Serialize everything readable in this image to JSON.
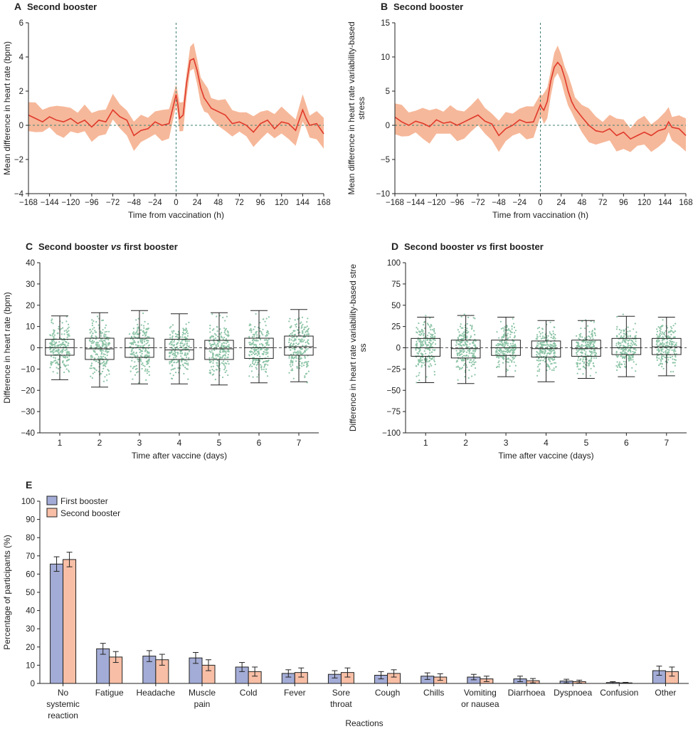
{
  "colors": {
    "ink": "#222222",
    "red_line": "#e0392b",
    "red_band": "#f6b89a",
    "dots": "#8cc4a6",
    "blue_bar": "#a3acd6",
    "orange_bar": "#f8bfa6",
    "ref_line": "#3f7f72"
  },
  "chart_data": [
    {
      "id": "A",
      "panel_letter": "A",
      "title": "Second booster",
      "type": "line",
      "xlabel": "Time from vaccination (h)",
      "ylabel": "Mean difference in heart rate (bpm)",
      "xlim": [
        -168,
        168
      ],
      "ylim": [
        -4,
        6
      ],
      "x_ticks": [
        "−168",
        "−144",
        "−120",
        "−96",
        "−72",
        "−48",
        "−24",
        "0",
        "24",
        "48",
        "72",
        "96",
        "120",
        "144",
        "168"
      ],
      "y_ticks": [
        "−4",
        "−2",
        "0",
        "2",
        "4",
        "6"
      ],
      "x_values": [
        -168,
        -160,
        -152,
        -144,
        -136,
        -128,
        -120,
        -112,
        -104,
        -96,
        -88,
        -80,
        -72,
        -64,
        -56,
        -48,
        -40,
        -32,
        -24,
        -16,
        -8,
        0,
        2,
        4,
        8,
        12,
        16,
        20,
        24,
        28,
        32,
        36,
        40,
        48,
        56,
        64,
        72,
        80,
        88,
        96,
        104,
        112,
        120,
        128,
        136,
        144,
        148,
        152,
        160,
        168
      ],
      "mean": [
        0.6,
        0.4,
        0.2,
        0.5,
        0.3,
        0.2,
        0.4,
        0.1,
        0.3,
        -0.1,
        0.3,
        0.2,
        0.9,
        0.5,
        0.3,
        -0.6,
        -0.3,
        -0.2,
        0.2,
        0.0,
        0.1,
        1.8,
        1.2,
        0.4,
        0.6,
        2.5,
        3.8,
        3.9,
        3.2,
        2.2,
        1.6,
        1.3,
        1.0,
        0.8,
        0.6,
        0.1,
        0.2,
        0.0,
        -0.4,
        0.1,
        0.3,
        -0.2,
        0.2,
        0.1,
        -0.3,
        0.9,
        0.4,
        0.0,
        0.1,
        -0.5
      ],
      "band_half_width": 0.75
    },
    {
      "id": "B",
      "panel_letter": "B",
      "title": "Second booster",
      "type": "line",
      "xlabel": "Time from vaccination (h)",
      "ylabel": "Mean difference in heart rate variability-based stress",
      "xlim": [
        -168,
        168
      ],
      "ylim": [
        -10,
        15
      ],
      "x_ticks": [
        "−168",
        "−144",
        "−120",
        "−96",
        "−72",
        "−48",
        "−24",
        "0",
        "24",
        "48",
        "72",
        "96",
        "120",
        "144",
        "168"
      ],
      "y_ticks": [
        "−10",
        "−5",
        "0",
        "5",
        "10",
        "15"
      ],
      "x_values": [
        -168,
        -160,
        -152,
        -144,
        -136,
        -128,
        -120,
        -112,
        -104,
        -96,
        -88,
        -80,
        -72,
        -64,
        -56,
        -48,
        -40,
        -32,
        -24,
        -16,
        -8,
        0,
        2,
        4,
        8,
        12,
        16,
        20,
        24,
        28,
        32,
        36,
        40,
        48,
        56,
        64,
        72,
        80,
        88,
        96,
        104,
        112,
        120,
        128,
        136,
        144,
        148,
        152,
        160,
        168
      ],
      "mean": [
        1.2,
        0.5,
        0.0,
        0.6,
        0.3,
        -0.2,
        0.8,
        0.3,
        0.5,
        0.0,
        0.5,
        1.0,
        1.5,
        0.6,
        0.2,
        -1.5,
        -0.5,
        0.0,
        0.8,
        0.4,
        0.5,
        3.0,
        2.5,
        2.2,
        3.5,
        6.5,
        8.5,
        9.2,
        8.6,
        7.0,
        5.0,
        3.5,
        2.5,
        1.2,
        0.0,
        -0.8,
        -1.0,
        -0.5,
        -1.5,
        -1.0,
        -2.0,
        -1.5,
        -1.0,
        -1.5,
        -0.8,
        -0.5,
        0.5,
        -0.3,
        -0.5,
        -1.5
      ],
      "band_half_width": 2.0
    },
    {
      "id": "C",
      "panel_letter": "C",
      "title_main": "Second booster ",
      "title_vs": "vs",
      "title_rest": " first booster",
      "type": "box",
      "xlabel": "Time after vaccine (days)",
      "ylabel": "Difference in heart rate (bpm)",
      "ylim": [
        -40,
        40
      ],
      "y_ticks": [
        "−40",
        "−30",
        "−20",
        "−10",
        "0",
        "10",
        "20",
        "30",
        "40"
      ],
      "categories": [
        "1",
        "2",
        "3",
        "4",
        "5",
        "6",
        "7"
      ],
      "boxes": [
        {
          "min": -15,
          "q1": -3.5,
          "median": 0,
          "q3": 4,
          "max": 15
        },
        {
          "min": -18.5,
          "q1": -5.5,
          "median": -0.5,
          "q3": 4.5,
          "max": 16.5
        },
        {
          "min": -17,
          "q1": -4.5,
          "median": 0,
          "q3": 4.5,
          "max": 17.5
        },
        {
          "min": -17,
          "q1": -5.5,
          "median": -1,
          "q3": 4,
          "max": 16
        },
        {
          "min": -17.5,
          "q1": -5.5,
          "median": -0.5,
          "q3": 3.5,
          "max": 16.5
        },
        {
          "min": -16.5,
          "q1": -5,
          "median": 0,
          "q3": 4.5,
          "max": 17.5
        },
        {
          "min": -16,
          "q1": -3.5,
          "median": 0.5,
          "q3": 5.5,
          "max": 18
        }
      ]
    },
    {
      "id": "D",
      "panel_letter": "D",
      "title_main": "Second booster ",
      "title_vs": "vs",
      "title_rest": " first booster",
      "type": "box",
      "xlabel": "Time after vaccine (days)",
      "ylabel": "Difference in heart rate variability-based stress",
      "ylim": [
        -100,
        100
      ],
      "y_ticks": [
        "−100",
        "−75",
        "−50",
        "−25",
        "0",
        "25",
        "50",
        "75",
        "100"
      ],
      "categories": [
        "1",
        "2",
        "3",
        "4",
        "5",
        "6",
        "7"
      ],
      "boxes": [
        {
          "min": -41,
          "q1": -10,
          "median": 0,
          "q3": 11,
          "max": 36
        },
        {
          "min": -42,
          "q1": -12,
          "median": -1,
          "q3": 9,
          "max": 38
        },
        {
          "min": -34,
          "q1": -9,
          "median": 0,
          "q3": 9,
          "max": 36
        },
        {
          "min": -40,
          "q1": -11,
          "median": -1,
          "q3": 8,
          "max": 32
        },
        {
          "min": -36,
          "q1": -10,
          "median": -1,
          "q3": 9,
          "max": 32
        },
        {
          "min": -34,
          "q1": -8,
          "median": 0,
          "q3": 11,
          "max": 37
        },
        {
          "min": -33,
          "q1": -8,
          "median": 1,
          "q3": 11,
          "max": 36
        }
      ]
    },
    {
      "id": "E",
      "panel_letter": "E",
      "type": "bar",
      "xlabel": "Reactions",
      "ylabel": "Percentage of participants (%)",
      "ylim": [
        0,
        100
      ],
      "y_ticks": [
        "0",
        "10",
        "20",
        "30",
        "40",
        "50",
        "60",
        "70",
        "80",
        "90",
        "100"
      ],
      "legend_position": "top-left",
      "categories": [
        [
          "No",
          "systemic",
          "reaction"
        ],
        [
          "Fatigue"
        ],
        [
          "Headache"
        ],
        [
          "Muscle",
          "pain"
        ],
        [
          "Cold"
        ],
        [
          "Fever"
        ],
        [
          "Sore",
          "throat"
        ],
        [
          "Cough"
        ],
        [
          "Chills"
        ],
        [
          "Vomiting",
          "or nausea"
        ],
        [
          "Diarrhoea"
        ],
        [
          "Dyspnoea"
        ],
        [
          "Confusion"
        ],
        [
          "Other"
        ]
      ],
      "series": [
        {
          "name": "First booster",
          "color_key": "blue_bar",
          "values": [
            65.5,
            19,
            15,
            14,
            9,
            5.5,
            5,
            4.5,
            4,
            3.5,
            2.5,
            1.3,
            0.5,
            7
          ],
          "errors": [
            4,
            3,
            3,
            3,
            2.5,
            2,
            2,
            2,
            1.8,
            1.5,
            1.5,
            1,
            0.5,
            2.5
          ]
        },
        {
          "name": "Second booster",
          "color_key": "orange_bar",
          "values": [
            68,
            14.5,
            13,
            10,
            6.5,
            6,
            6,
            5.5,
            3.5,
            2.5,
            1.5,
            1,
            0.3,
            6.5
          ],
          "errors": [
            4,
            3,
            3,
            3,
            2.5,
            2.5,
            2.5,
            2,
            1.8,
            1.5,
            1.2,
            0.8,
            0.3,
            2.5
          ]
        }
      ]
    }
  ]
}
